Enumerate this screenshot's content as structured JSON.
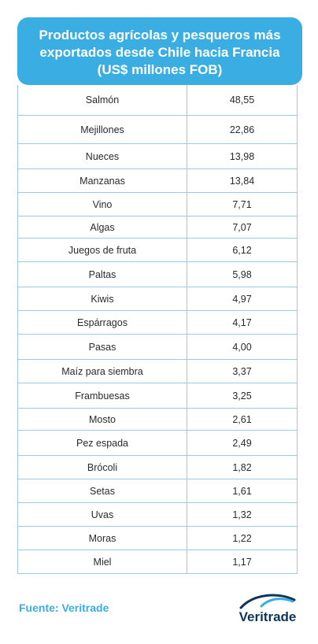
{
  "header": {
    "line1": "Productos agrícolas y pesqueros más",
    "line2": "exportados desde Chile hacia Francia",
    "line3": "(US$ millones FOB)"
  },
  "chart_data": {
    "type": "table",
    "title": "Productos agrícolas y pesqueros más exportados desde Chile hacia Francia (US$ millones FOB)",
    "rows": [
      {
        "product": "Salmón",
        "value": "48,55"
      },
      {
        "product": "Mejillones",
        "value": "22,86"
      },
      {
        "product": "Nueces",
        "value": "13,98"
      },
      {
        "product": "Manzanas",
        "value": "13,84"
      },
      {
        "product": "Vino",
        "value": "7,71"
      },
      {
        "product": "Algas",
        "value": "7,07"
      },
      {
        "product": "Juegos de fruta",
        "value": "6,12"
      },
      {
        "product": "Paltas",
        "value": "5,98"
      },
      {
        "product": "Kiwis",
        "value": "4,97"
      },
      {
        "product": "Espárragos",
        "value": "4,17"
      },
      {
        "product": "Pasas",
        "value": "4,00"
      },
      {
        "product": "Maíz para siembra",
        "value": "3,37"
      },
      {
        "product": "Frambuesas",
        "value": "3,25"
      },
      {
        "product": "Mosto",
        "value": "2,61"
      },
      {
        "product": "Pez espada",
        "value": "2,49"
      },
      {
        "product": "Brócoli",
        "value": "1,82"
      },
      {
        "product": "Setas",
        "value": "1,61"
      },
      {
        "product": "Uvas",
        "value": "1,32"
      },
      {
        "product": "Moras",
        "value": "1,22"
      },
      {
        "product": "Miel",
        "value": "1,17"
      }
    ]
  },
  "footer": {
    "source": "Fuente: Veritrade",
    "logo_text": "Veritrade",
    "logo_colors": {
      "dark": "#0d3559",
      "accent": "#3aaee3"
    }
  }
}
